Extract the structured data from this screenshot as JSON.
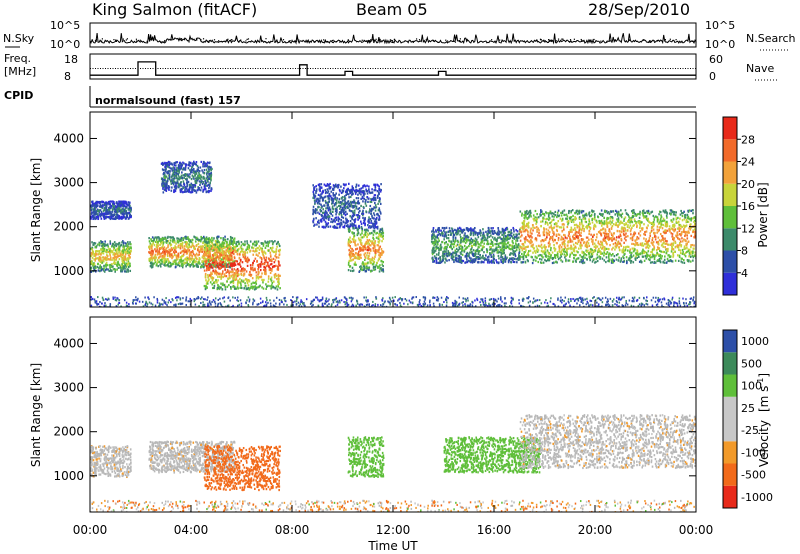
{
  "header": {
    "station": "King Salmon (fitACF)",
    "beam": "Beam 05",
    "date": "28/Sep/2010"
  },
  "noise_panel": {
    "left_label": "N.Sky",
    "right_label": "N.Search",
    "left_ticks": [
      "10^5",
      "10^0"
    ],
    "right_ticks": [
      "10^5",
      "10^0"
    ]
  },
  "freq_panel": {
    "left_label_1": "Freq.",
    "left_label_2": "[MHz]",
    "right_label": "Nave",
    "left_ticks": [
      "18",
      "8"
    ],
    "right_ticks": [
      "60",
      "0"
    ]
  },
  "cpid_panel": {
    "label": "CPID",
    "text": "normalsound (fast) 157"
  },
  "colors": {
    "power_scale": [
      "#2f2fd9",
      "#2d4fa8",
      "#3c8a6a",
      "#5fbf3a",
      "#c8d43a",
      "#f2a23a",
      "#f26a2a",
      "#e82a1a"
    ],
    "velocity_scale": [
      "#e82a1a",
      "#f26a1a",
      "#f29a2a",
      "#c8c8c8",
      "#c8c8c8",
      "#5fbf3a",
      "#3c8a5a",
      "#2d4fa8"
    ],
    "ground_scatter": "#b8b8b8"
  },
  "chart_data": [
    {
      "type": "heatmap",
      "name": "power",
      "xlabel": "",
      "ylabel": "Slant Range [km]",
      "x_ticks": [
        "00:00",
        "04:00",
        "08:00",
        "12:00",
        "16:00",
        "20:00",
        "00:00"
      ],
      "y_ticks": [
        1000,
        2000,
        3000,
        4000
      ],
      "xlim_hours": [
        0,
        24
      ],
      "ylim_km": [
        180,
        4600
      ],
      "colorbar": {
        "label": "Power [dB]",
        "ticks": [
          4,
          8,
          12,
          16,
          20,
          24,
          28
        ],
        "range": [
          0,
          32
        ]
      },
      "features": [
        {
          "t0": 0.0,
          "t1": 1.6,
          "r0": 1000,
          "r1": 1700,
          "peak_db": 22
        },
        {
          "t0": 0.0,
          "t1": 1.6,
          "r0": 2200,
          "r1": 2600,
          "peak_db": 8
        },
        {
          "t0": 2.3,
          "t1": 5.7,
          "r0": 1100,
          "r1": 1800,
          "peak_db": 26
        },
        {
          "t0": 2.8,
          "t1": 4.8,
          "r0": 2800,
          "r1": 3500,
          "peak_db": 10
        },
        {
          "t0": 4.5,
          "t1": 7.5,
          "r0": 600,
          "r1": 1700,
          "peak_db": 30
        },
        {
          "t0": 8.8,
          "t1": 11.5,
          "r0": 2000,
          "r1": 3000,
          "peak_db": 8
        },
        {
          "t0": 10.2,
          "t1": 11.6,
          "r0": 1000,
          "r1": 2000,
          "peak_db": 26
        },
        {
          "t0": 13.5,
          "t1": 17.0,
          "r0": 1200,
          "r1": 2000,
          "peak_db": 14
        },
        {
          "t0": 17.0,
          "t1": 24.0,
          "r0": 1200,
          "r1": 2400,
          "peak_db": 26
        }
      ]
    },
    {
      "type": "heatmap",
      "name": "velocity",
      "xlabel": "Time UT",
      "ylabel": "Slant Range [km]",
      "x_ticks": [
        "00:00",
        "04:00",
        "08:00",
        "12:00",
        "16:00",
        "20:00",
        "00:00"
      ],
      "y_ticks": [
        1000,
        2000,
        3000,
        4000
      ],
      "xlim_hours": [
        0,
        24
      ],
      "ylim_km": [
        180,
        4600
      ],
      "colorbar": {
        "label": "Velocity",
        "unit": "[m s",
        "unit_exp": "-1",
        "unit_end": "]",
        "ticks": [
          "1000",
          "500",
          "100",
          "25",
          "-25",
          "-100",
          "-500",
          "-1000"
        ]
      },
      "features": [
        {
          "t0": 0.0,
          "t1": 1.6,
          "r0": 1000,
          "r1": 1700,
          "velocity": 0
        },
        {
          "t0": 2.3,
          "t1": 5.7,
          "r0": 1100,
          "r1": 1800,
          "velocity": 0
        },
        {
          "t0": 4.5,
          "t1": 7.5,
          "r0": 700,
          "r1": 1700,
          "velocity": -150
        },
        {
          "t0": 10.2,
          "t1": 11.6,
          "r0": 1000,
          "r1": 1900,
          "velocity": 150
        },
        {
          "t0": 14.0,
          "t1": 17.8,
          "r0": 1100,
          "r1": 1900,
          "velocity": 300
        },
        {
          "t0": 17.0,
          "t1": 24.0,
          "r0": 1200,
          "r1": 2400,
          "velocity": 0
        }
      ]
    }
  ]
}
